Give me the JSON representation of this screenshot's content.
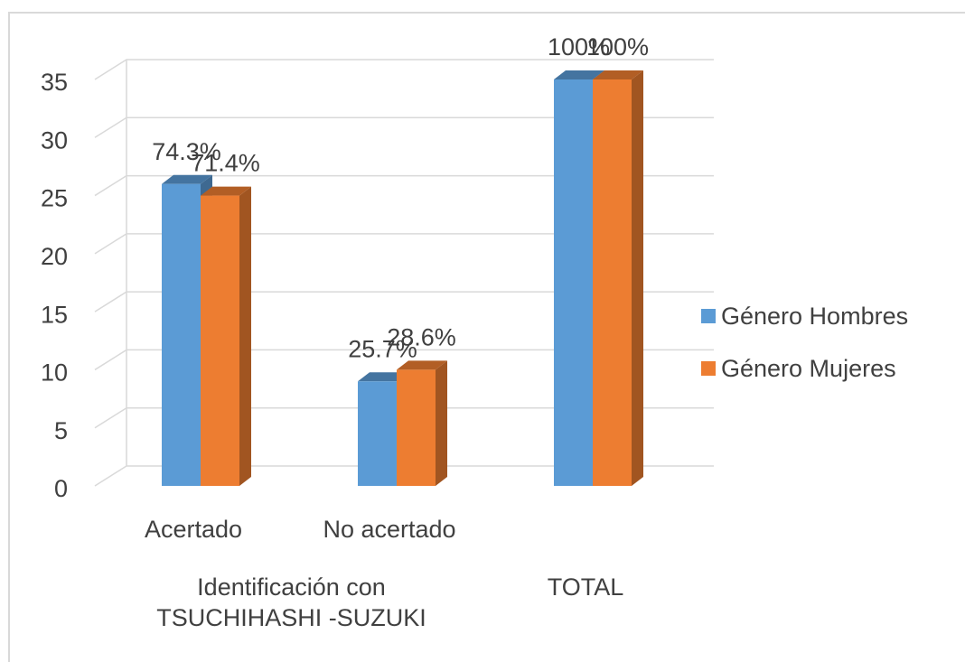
{
  "chart_data": {
    "type": "bar3d",
    "categories": [
      "Acertado",
      "No acertado",
      null
    ],
    "category_groups": [
      {
        "label": "Identificación con TSUCHIHASHI -SUZUKI",
        "span": 2
      },
      {
        "label": "TOTAL",
        "span": 1
      }
    ],
    "series": [
      {
        "name": "Género Hombres",
        "color": "#5b9bd5",
        "values": [
          26,
          9,
          35
        ],
        "value_labels": [
          "74.3%",
          "25.7%",
          "100%"
        ]
      },
      {
        "name": "Género Mujeres",
        "color": "#ed7d31",
        "values": [
          25,
          10,
          35
        ],
        "value_labels": [
          "71.4%",
          "28.6%",
          "100%"
        ]
      }
    ],
    "ylim": [
      0,
      35
    ],
    "yticks": [
      0,
      5,
      10,
      15,
      20,
      25,
      30,
      35
    ],
    "grid": true,
    "legend": "right"
  }
}
